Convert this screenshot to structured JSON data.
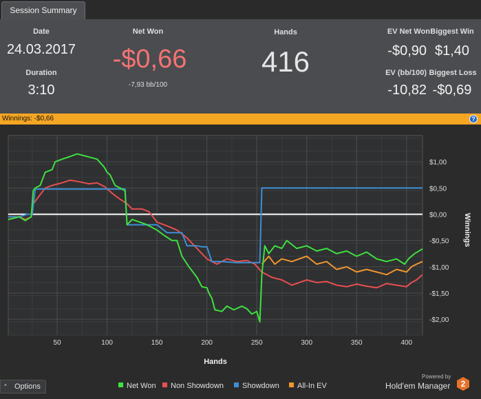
{
  "tab": {
    "label": "Session Summary"
  },
  "summary": {
    "date_label": "Date",
    "date": "24.03.2017",
    "duration_label": "Duration",
    "duration": "3:10",
    "net_won_label": "Net Won",
    "net_won": "-$0,66",
    "net_won_bb": "-7,93 bb/100",
    "hands_label": "Hands",
    "hands": "416",
    "ev_net_won_label": "EV Net Won",
    "ev_net_won": "-$0,90",
    "biggest_win_label": "Biggest Win",
    "biggest_win": "$1,40",
    "ev_bb_label": "EV (bb/100)",
    "ev_bb": "-10,82",
    "biggest_loss_label": "Biggest Loss",
    "biggest_loss": "-$0,69"
  },
  "banner": {
    "text": "Winnings: -$0,66",
    "help_glyph": "?"
  },
  "options": {
    "label": "Options",
    "caret": "^"
  },
  "legend": [
    {
      "label": "Net Won",
      "color": "#3ee23e"
    },
    {
      "label": "Non Showdown",
      "color": "#e84f4f"
    },
    {
      "label": "Showdown",
      "color": "#3d8fd6"
    },
    {
      "label": "All-In EV",
      "color": "#f0962e"
    }
  ],
  "brand": {
    "powered_by": "Powered by",
    "name": "Hold'em Manager",
    "logo_number": "2"
  },
  "colors": {
    "net_won_value": "#f47373",
    "banner": "#f5a623",
    "summary_bg": "#4a4c4f"
  },
  "chart_data": {
    "type": "line",
    "xlabel": "Hands",
    "ylabel": "Winnings",
    "xlim": [
      1,
      416
    ],
    "ylim": [
      -2.3,
      1.5
    ],
    "xticks": [
      50,
      100,
      150,
      200,
      250,
      300,
      350,
      400
    ],
    "yticks": [
      {
        "value": 1.0,
        "label": "$1,00"
      },
      {
        "value": 0.5,
        "label": "$0,50"
      },
      {
        "value": 0.0,
        "label": "$0,00"
      },
      {
        "value": -0.5,
        "label": "-$0,50"
      },
      {
        "value": -1.0,
        "label": "-$1,00"
      },
      {
        "value": -1.5,
        "label": "-$1,50"
      },
      {
        "value": -2.0,
        "label": "-$2,00"
      }
    ],
    "grid": true,
    "series": [
      {
        "name": "Net Won",
        "color": "#3ee23e",
        "points": [
          [
            1,
            -0.1
          ],
          [
            12,
            -0.05
          ],
          [
            18,
            -0.12
          ],
          [
            24,
            -0.05
          ],
          [
            26,
            0.45
          ],
          [
            28,
            0.5
          ],
          [
            33,
            0.55
          ],
          [
            38,
            0.8
          ],
          [
            45,
            0.85
          ],
          [
            48,
            1.0
          ],
          [
            55,
            1.05
          ],
          [
            63,
            1.1
          ],
          [
            70,
            1.15
          ],
          [
            80,
            1.1
          ],
          [
            90,
            1.05
          ],
          [
            97,
            0.9
          ],
          [
            100,
            0.8
          ],
          [
            103,
            0.75
          ],
          [
            108,
            0.55
          ],
          [
            113,
            0.5
          ],
          [
            118,
            0.45
          ],
          [
            120,
            -0.2
          ],
          [
            125,
            -0.1
          ],
          [
            133,
            -0.15
          ],
          [
            140,
            -0.2
          ],
          [
            150,
            -0.3
          ],
          [
            157,
            -0.4
          ],
          [
            165,
            -0.5
          ],
          [
            170,
            -0.5
          ],
          [
            175,
            -0.8
          ],
          [
            182,
            -1.0
          ],
          [
            190,
            -1.2
          ],
          [
            195,
            -1.38
          ],
          [
            200,
            -1.4
          ],
          [
            202,
            -1.5
          ],
          [
            205,
            -1.6
          ],
          [
            208,
            -1.82
          ],
          [
            215,
            -1.85
          ],
          [
            220,
            -1.75
          ],
          [
            227,
            -1.82
          ],
          [
            235,
            -1.75
          ],
          [
            240,
            -1.8
          ],
          [
            245,
            -1.9
          ],
          [
            250,
            -1.85
          ],
          [
            253,
            -2.05
          ],
          [
            255,
            -1.15
          ],
          [
            258,
            -0.6
          ],
          [
            262,
            -0.75
          ],
          [
            268,
            -0.6
          ],
          [
            275,
            -0.65
          ],
          [
            280,
            -0.5
          ],
          [
            290,
            -0.65
          ],
          [
            300,
            -0.6
          ],
          [
            310,
            -0.7
          ],
          [
            320,
            -0.65
          ],
          [
            330,
            -0.75
          ],
          [
            340,
            -0.7
          ],
          [
            350,
            -0.8
          ],
          [
            360,
            -0.72
          ],
          [
            370,
            -0.85
          ],
          [
            380,
            -0.9
          ],
          [
            390,
            -0.85
          ],
          [
            398,
            -0.95
          ],
          [
            402,
            -0.85
          ],
          [
            408,
            -0.75
          ],
          [
            416,
            -0.66
          ]
        ]
      },
      {
        "name": "Non Showdown",
        "color": "#e84f4f",
        "points": [
          [
            1,
            -0.05
          ],
          [
            12,
            -0.05
          ],
          [
            18,
            -0.1
          ],
          [
            24,
            -0.05
          ],
          [
            26,
            0.2
          ],
          [
            30,
            0.3
          ],
          [
            38,
            0.5
          ],
          [
            45,
            0.55
          ],
          [
            55,
            0.6
          ],
          [
            63,
            0.65
          ],
          [
            72,
            0.62
          ],
          [
            82,
            0.58
          ],
          [
            90,
            0.6
          ],
          [
            98,
            0.52
          ],
          [
            105,
            0.4
          ],
          [
            112,
            0.3
          ],
          [
            120,
            0.2
          ],
          [
            125,
            0.1
          ],
          [
            135,
            0.1
          ],
          [
            142,
            0.05
          ],
          [
            150,
            -0.15
          ],
          [
            160,
            -0.22
          ],
          [
            170,
            -0.3
          ],
          [
            180,
            -0.45
          ],
          [
            190,
            -0.65
          ],
          [
            200,
            -0.85
          ],
          [
            210,
            -0.95
          ],
          [
            220,
            -0.85
          ],
          [
            230,
            -0.9
          ],
          [
            240,
            -0.88
          ],
          [
            248,
            -0.95
          ],
          [
            255,
            -1.1
          ],
          [
            265,
            -1.2
          ],
          [
            275,
            -1.25
          ],
          [
            285,
            -1.35
          ],
          [
            300,
            -1.25
          ],
          [
            310,
            -1.3
          ],
          [
            320,
            -1.28
          ],
          [
            330,
            -1.35
          ],
          [
            340,
            -1.38
          ],
          [
            350,
            -1.33
          ],
          [
            360,
            -1.37
          ],
          [
            370,
            -1.4
          ],
          [
            380,
            -1.32
          ],
          [
            390,
            -1.35
          ],
          [
            400,
            -1.38
          ],
          [
            405,
            -1.3
          ],
          [
            410,
            -1.25
          ],
          [
            416,
            -1.15
          ]
        ]
      },
      {
        "name": "Showdown",
        "color": "#3d8fd6",
        "points": [
          [
            1,
            -0.05
          ],
          [
            12,
            -0.05
          ],
          [
            20,
            0.0
          ],
          [
            25,
            0.0
          ],
          [
            28,
            0.48
          ],
          [
            40,
            0.48
          ],
          [
            50,
            0.48
          ],
          [
            60,
            0.48
          ],
          [
            70,
            0.48
          ],
          [
            80,
            0.48
          ],
          [
            90,
            0.48
          ],
          [
            100,
            0.48
          ],
          [
            118,
            0.48
          ],
          [
            120,
            -0.2
          ],
          [
            135,
            -0.2
          ],
          [
            150,
            -0.2
          ],
          [
            160,
            -0.35
          ],
          [
            175,
            -0.35
          ],
          [
            180,
            -0.6
          ],
          [
            190,
            -0.6
          ],
          [
            195,
            -0.62
          ],
          [
            200,
            -0.62
          ],
          [
            205,
            -0.9
          ],
          [
            215,
            -0.9
          ],
          [
            230,
            -0.92
          ],
          [
            240,
            -0.92
          ],
          [
            250,
            -0.92
          ],
          [
            253,
            -0.92
          ],
          [
            255,
            0.5
          ],
          [
            260,
            0.5
          ],
          [
            300,
            0.5
          ],
          [
            350,
            0.5
          ],
          [
            400,
            0.5
          ],
          [
            416,
            0.5
          ]
        ]
      },
      {
        "name": "All-In EV",
        "color": "#f0962e",
        "points": [
          [
            255,
            -0.95
          ],
          [
            262,
            -0.8
          ],
          [
            268,
            -0.95
          ],
          [
            275,
            -0.85
          ],
          [
            285,
            -0.9
          ],
          [
            300,
            -0.8
          ],
          [
            310,
            -0.95
          ],
          [
            320,
            -0.9
          ],
          [
            330,
            -1.05
          ],
          [
            340,
            -1.0
          ],
          [
            350,
            -1.1
          ],
          [
            360,
            -1.05
          ],
          [
            370,
            -1.1
          ],
          [
            380,
            -1.15
          ],
          [
            390,
            -1.05
          ],
          [
            400,
            -1.1
          ],
          [
            405,
            -1.0
          ],
          [
            410,
            -0.95
          ],
          [
            416,
            -0.9
          ]
        ]
      }
    ]
  }
}
